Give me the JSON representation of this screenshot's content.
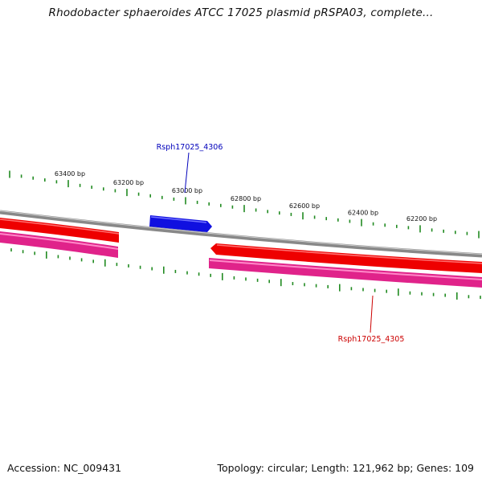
{
  "title": "Rhodobacter sphaeroides ATCC 17025 plasmid pRSPA03, complete...",
  "footer": {
    "accession": "Accession: NC_009431",
    "summary": "Topology: circular; Length: 121,962 bp; Genes: 109"
  },
  "colors": {
    "backbone": "#888888",
    "tick": "#228b22",
    "gene_forward": "#1010e0",
    "gene_reverse": "#ff0000",
    "cds_reverse": "#ff3399",
    "label_forward": "#0000bb",
    "label_reverse": "#cc0000"
  },
  "scale": {
    "unit": "bp",
    "labels": [
      "63400 bp",
      "63200 bp",
      "63000 bp",
      "62800 bp",
      "62600 bp",
      "62400 bp",
      "62200 bp"
    ]
  },
  "genes": [
    {
      "name": "Rsph17025_4306",
      "strand": "forward"
    },
    {
      "name": "Rsph17025_4305",
      "strand": "reverse"
    }
  ]
}
